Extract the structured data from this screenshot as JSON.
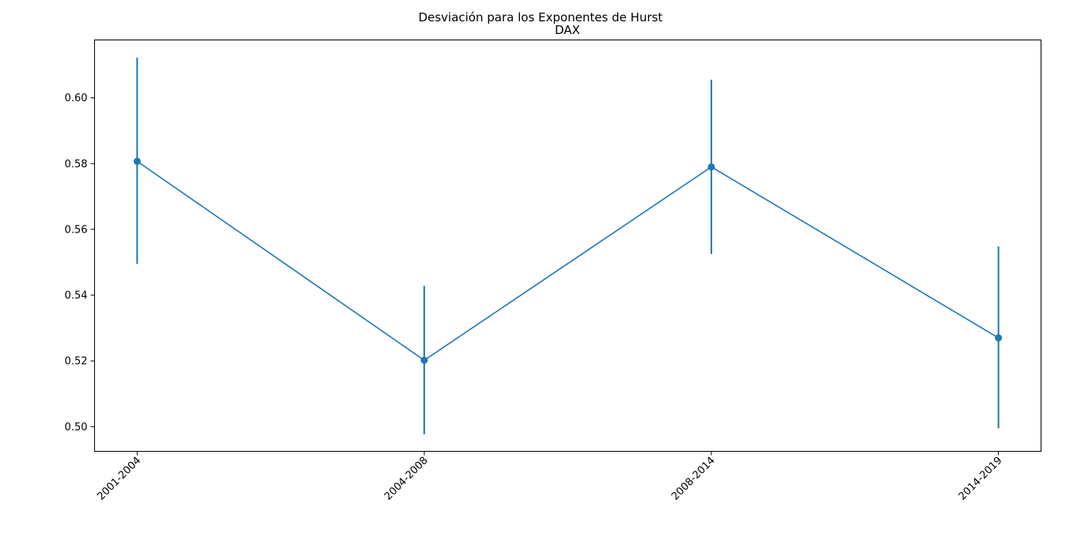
{
  "chart_data": {
    "type": "line",
    "title": "Desviación para los Exponentes de Hurst",
    "subtitle": "DAX",
    "xlabel": "",
    "ylabel": "",
    "categories": [
      "2001-2004",
      "2004-2008",
      "2008-2014",
      "2014-2019"
    ],
    "series": [
      {
        "values": [
          0.5807,
          0.5202,
          0.579,
          0.527
        ],
        "error_low": [
          0.5495,
          0.4977,
          0.5525,
          0.4995
        ],
        "error_high": [
          0.6122,
          0.5428,
          0.6055,
          0.5548
        ]
      }
    ],
    "ylim": [
      0.4925,
      0.6176
    ],
    "yticks": [
      0.5,
      0.52,
      0.54,
      0.56,
      0.58,
      0.6
    ],
    "ytick_labels": [
      "0.50",
      "0.52",
      "0.54",
      "0.56",
      "0.58",
      "0.60"
    ],
    "grid": false,
    "legend": "none",
    "x_tick_rotation": 45,
    "color": "#1f77b4"
  }
}
